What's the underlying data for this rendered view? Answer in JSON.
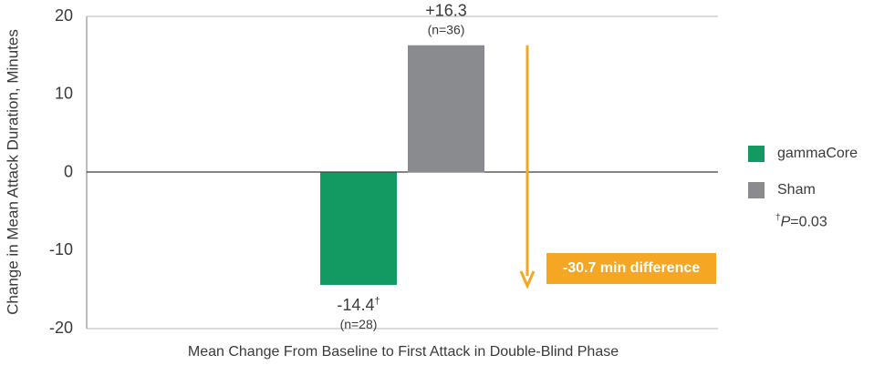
{
  "chart_data": {
    "type": "bar",
    "ylabel": "Change in Mean Attack Duration, Minutes",
    "xlabel": "Mean Change From Baseline to First Attack in Double-Blind Phase",
    "ylim": [
      -20,
      20
    ],
    "yticks": [
      20,
      10,
      0,
      -10,
      -20
    ],
    "yticks_text": [
      "20",
      "10",
      "0",
      "-10",
      "-20"
    ],
    "grid": false,
    "legend_position": "right",
    "series": [
      {
        "name": "gammaCore",
        "value": -14.4,
        "label": "-14.4",
        "label_mark": "†",
        "n_label": "(n=28)",
        "color": "#139962"
      },
      {
        "name": "Sham",
        "value": 16.3,
        "label": "+16.3",
        "label_mark": "",
        "n_label": "(n=36)",
        "color": "#8a8b8e"
      }
    ],
    "difference": {
      "value": -30.7,
      "label": "-30.7 min difference",
      "color": "#f5a623"
    },
    "footnote": {
      "dagger": "†",
      "italic": "P",
      "text": "=0.03"
    }
  }
}
